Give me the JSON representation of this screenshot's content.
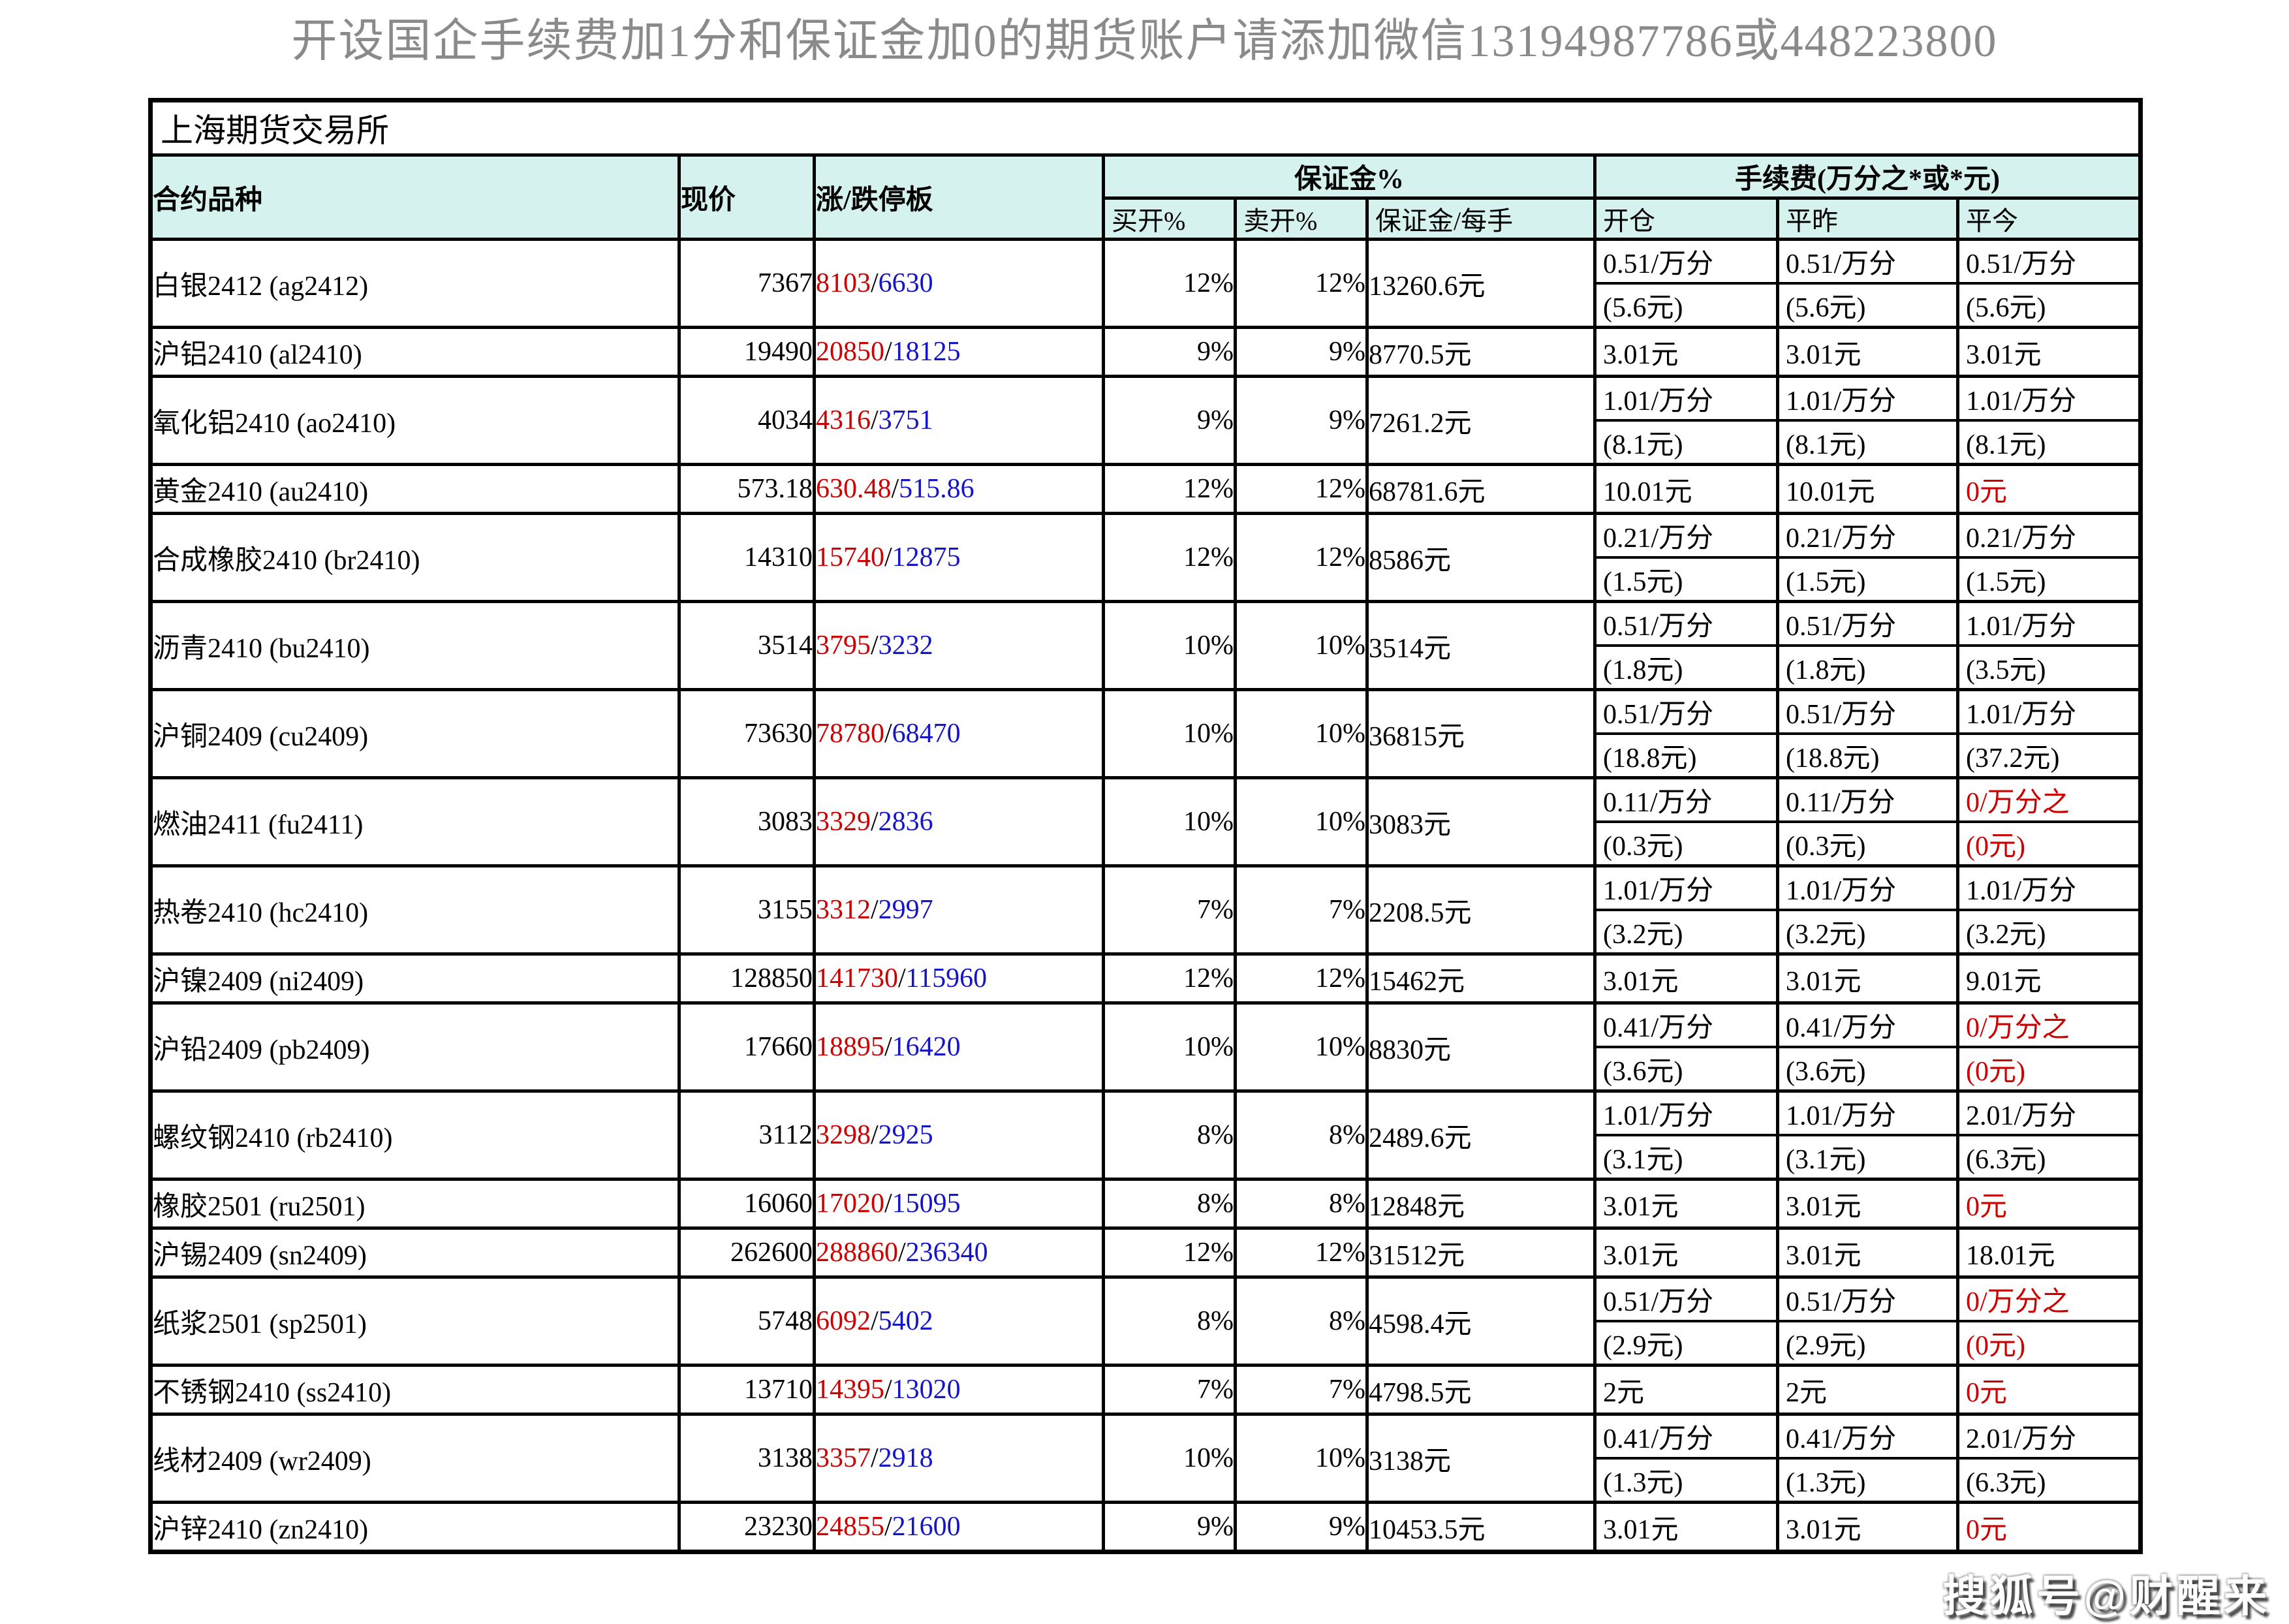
{
  "banner": {
    "text": "开设国企手续费加1分和保证金加0的期货账户请添加微信13194987786或448223800"
  },
  "exchange": "上海期货交易所",
  "limit_separator": "/",
  "columns": {
    "contract": "合约品种",
    "price": "现价",
    "limit": "涨/跌停板",
    "margin_group": "保证金%",
    "fee_group": "手续费(万分之*或*元)",
    "buy_open": "买开%",
    "sell_open": "卖开%",
    "margin_per_lot": "保证金/每手",
    "open": "开仓",
    "close_yesterday": "平昨",
    "close_today": "平今"
  },
  "colors": {
    "up_limit": "#cc0000",
    "down_limit": "#1414c8",
    "zero_fee": "#cc0000",
    "header_bg": "#d6f2ee",
    "banner_text": "#8a8a8a"
  },
  "watermark": "搜狐号@财醒来",
  "rows": [
    {
      "contract": "白银2412 (ag2412)",
      "price": "7367",
      "up": "8103",
      "down": "6630",
      "buy": "12%",
      "sell": "12%",
      "margin": "13260.6元",
      "fees": [
        {
          "l1": "0.51/万分",
          "l2": "(5.6元)",
          "red": false
        },
        {
          "l1": "0.51/万分",
          "l2": "(5.6元)",
          "red": false
        },
        {
          "l1": "0.51/万分",
          "l2": "(5.6元)",
          "red": false
        }
      ]
    },
    {
      "contract": "沪铝2410 (al2410)",
      "price": "19490",
      "up": "20850",
      "down": "18125",
      "buy": "9%",
      "sell": "9%",
      "margin": "8770.5元",
      "fees": [
        {
          "l1": "3.01元",
          "red": false
        },
        {
          "l1": "3.01元",
          "red": false
        },
        {
          "l1": "3.01元",
          "red": false
        }
      ]
    },
    {
      "contract": "氧化铝2410 (ao2410)",
      "price": "4034",
      "up": "4316",
      "down": "3751",
      "buy": "9%",
      "sell": "9%",
      "margin": "7261.2元",
      "fees": [
        {
          "l1": "1.01/万分",
          "l2": "(8.1元)",
          "red": false
        },
        {
          "l1": "1.01/万分",
          "l2": "(8.1元)",
          "red": false
        },
        {
          "l1": "1.01/万分",
          "l2": "(8.1元)",
          "red": false
        }
      ]
    },
    {
      "contract": "黄金2410 (au2410)",
      "price": "573.18",
      "up": "630.48",
      "down": "515.86",
      "buy": "12%",
      "sell": "12%",
      "margin": "68781.6元",
      "fees": [
        {
          "l1": "10.01元",
          "red": false
        },
        {
          "l1": "10.01元",
          "red": false
        },
        {
          "l1": "0元",
          "red": true
        }
      ]
    },
    {
      "contract": "合成橡胶2410 (br2410)",
      "price": "14310",
      "up": "15740",
      "down": "12875",
      "buy": "12%",
      "sell": "12%",
      "margin": "8586元",
      "fees": [
        {
          "l1": "0.21/万分",
          "l2": "(1.5元)",
          "red": false
        },
        {
          "l1": "0.21/万分",
          "l2": "(1.5元)",
          "red": false
        },
        {
          "l1": "0.21/万分",
          "l2": "(1.5元)",
          "red": false
        }
      ]
    },
    {
      "contract": "沥青2410 (bu2410)",
      "price": "3514",
      "up": "3795",
      "down": "3232",
      "buy": "10%",
      "sell": "10%",
      "margin": "3514元",
      "fees": [
        {
          "l1": "0.51/万分",
          "l2": "(1.8元)",
          "red": false
        },
        {
          "l1": "0.51/万分",
          "l2": "(1.8元)",
          "red": false
        },
        {
          "l1": "1.01/万分",
          "l2": "(3.5元)",
          "red": false
        }
      ]
    },
    {
      "contract": "沪铜2409 (cu2409)",
      "price": "73630",
      "up": "78780",
      "down": "68470",
      "buy": "10%",
      "sell": "10%",
      "margin": "36815元",
      "fees": [
        {
          "l1": "0.51/万分",
          "l2": "(18.8元)",
          "red": false
        },
        {
          "l1": "0.51/万分",
          "l2": "(18.8元)",
          "red": false
        },
        {
          "l1": "1.01/万分",
          "l2": "(37.2元)",
          "red": false
        }
      ]
    },
    {
      "contract": "燃油2411 (fu2411)",
      "price": "3083",
      "up": "3329",
      "down": "2836",
      "buy": "10%",
      "sell": "10%",
      "margin": "3083元",
      "fees": [
        {
          "l1": "0.11/万分",
          "l2": "(0.3元)",
          "red": false
        },
        {
          "l1": "0.11/万分",
          "l2": "(0.3元)",
          "red": false
        },
        {
          "l1": "0/万分之",
          "l2": "(0元)",
          "red": true
        }
      ]
    },
    {
      "contract": "热卷2410 (hc2410)",
      "price": "3155",
      "up": "3312",
      "down": "2997",
      "buy": "7%",
      "sell": "7%",
      "margin": "2208.5元",
      "fees": [
        {
          "l1": "1.01/万分",
          "l2": "(3.2元)",
          "red": false
        },
        {
          "l1": "1.01/万分",
          "l2": "(3.2元)",
          "red": false
        },
        {
          "l1": "1.01/万分",
          "l2": "(3.2元)",
          "red": false
        }
      ]
    },
    {
      "contract": "沪镍2409 (ni2409)",
      "price": "128850",
      "up": "141730",
      "down": "115960",
      "buy": "12%",
      "sell": "12%",
      "margin": "15462元",
      "fees": [
        {
          "l1": "3.01元",
          "red": false
        },
        {
          "l1": "3.01元",
          "red": false
        },
        {
          "l1": "9.01元",
          "red": false
        }
      ]
    },
    {
      "contract": "沪铅2409 (pb2409)",
      "price": "17660",
      "up": "18895",
      "down": "16420",
      "buy": "10%",
      "sell": "10%",
      "margin": "8830元",
      "fees": [
        {
          "l1": "0.41/万分",
          "l2": "(3.6元)",
          "red": false
        },
        {
          "l1": "0.41/万分",
          "l2": "(3.6元)",
          "red": false
        },
        {
          "l1": "0/万分之",
          "l2": "(0元)",
          "red": true
        }
      ]
    },
    {
      "contract": "螺纹钢2410 (rb2410)",
      "price": "3112",
      "up": "3298",
      "down": "2925",
      "buy": "8%",
      "sell": "8%",
      "margin": "2489.6元",
      "fees": [
        {
          "l1": "1.01/万分",
          "l2": "(3.1元)",
          "red": false
        },
        {
          "l1": "1.01/万分",
          "l2": "(3.1元)",
          "red": false
        },
        {
          "l1": "2.01/万分",
          "l2": "(6.3元)",
          "red": false
        }
      ]
    },
    {
      "contract": "橡胶2501 (ru2501)",
      "price": "16060",
      "up": "17020",
      "down": "15095",
      "buy": "8%",
      "sell": "8%",
      "margin": "12848元",
      "fees": [
        {
          "l1": "3.01元",
          "red": false
        },
        {
          "l1": "3.01元",
          "red": false
        },
        {
          "l1": "0元",
          "red": true
        }
      ]
    },
    {
      "contract": "沪锡2409 (sn2409)",
      "price": "262600",
      "up": "288860",
      "down": "236340",
      "buy": "12%",
      "sell": "12%",
      "margin": "31512元",
      "fees": [
        {
          "l1": "3.01元",
          "red": false
        },
        {
          "l1": "3.01元",
          "red": false
        },
        {
          "l1": "18.01元",
          "red": false
        }
      ]
    },
    {
      "contract": "纸浆2501 (sp2501)",
      "price": "5748",
      "up": "6092",
      "down": "5402",
      "buy": "8%",
      "sell": "8%",
      "margin": "4598.4元",
      "fees": [
        {
          "l1": "0.51/万分",
          "l2": "(2.9元)",
          "red": false
        },
        {
          "l1": "0.51/万分",
          "l2": "(2.9元)",
          "red": false
        },
        {
          "l1": "0/万分之",
          "l2": "(0元)",
          "red": true
        }
      ]
    },
    {
      "contract": "不锈钢2410 (ss2410)",
      "price": "13710",
      "up": "14395",
      "down": "13020",
      "buy": "7%",
      "sell": "7%",
      "margin": "4798.5元",
      "fees": [
        {
          "l1": "2元",
          "red": false
        },
        {
          "l1": "2元",
          "red": false
        },
        {
          "l1": "0元",
          "red": true
        }
      ]
    },
    {
      "contract": "线材2409 (wr2409)",
      "price": "3138",
      "up": "3357",
      "down": "2918",
      "buy": "10%",
      "sell": "10%",
      "margin": "3138元",
      "fees": [
        {
          "l1": "0.41/万分",
          "l2": "(1.3元)",
          "red": false
        },
        {
          "l1": "0.41/万分",
          "l2": "(1.3元)",
          "red": false
        },
        {
          "l1": "2.01/万分",
          "l2": "(6.3元)",
          "red": false
        }
      ]
    },
    {
      "contract": "沪锌2410 (zn2410)",
      "price": "23230",
      "up": "24855",
      "down": "21600",
      "buy": "9%",
      "sell": "9%",
      "margin": "10453.5元",
      "fees": [
        {
          "l1": "3.01元",
          "red": false
        },
        {
          "l1": "3.01元",
          "red": false
        },
        {
          "l1": "0元",
          "red": true
        }
      ]
    }
  ]
}
